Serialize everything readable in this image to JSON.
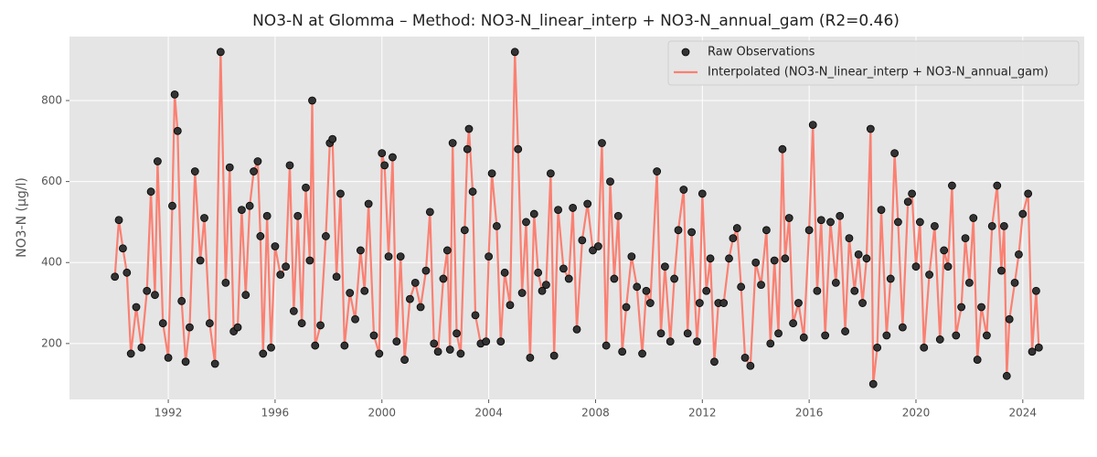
{
  "chart_data": {
    "type": "line_scatter",
    "title": "NO3-N at Glomma – Method: NO3-N_linear_interp + NO3-N_annual_gam (R2=0.46)",
    "y_label": "NO3-N (µg/l)",
    "xlim": [
      1988.3,
      2026.3
    ],
    "xticks": [
      1992,
      1996,
      2000,
      2004,
      2008,
      2012,
      2016,
      2020,
      2024
    ],
    "ylim": [
      62,
      958
    ],
    "yticks": [
      200,
      400,
      600,
      800
    ],
    "grid": true,
    "legend": "upper right",
    "x": [
      1990.0,
      1990.15,
      1990.3,
      1990.45,
      1990.6,
      1990.8,
      1991.0,
      1991.2,
      1991.35,
      1991.5,
      1991.6,
      1991.8,
      1992.0,
      1992.15,
      1992.24,
      1992.35,
      1992.5,
      1992.65,
      1992.8,
      1993.0,
      1993.2,
      1993.35,
      1993.55,
      1993.75,
      1993.96,
      1994.15,
      1994.3,
      1994.45,
      1994.6,
      1994.75,
      1994.9,
      1995.05,
      1995.2,
      1995.35,
      1995.45,
      1995.55,
      1995.7,
      1995.85,
      1996.0,
      1996.2,
      1996.4,
      1996.55,
      1996.7,
      1996.85,
      1997.0,
      1997.15,
      1997.3,
      1997.39,
      1997.5,
      1997.7,
      1997.9,
      1998.05,
      1998.15,
      1998.3,
      1998.45,
      1998.6,
      1998.8,
      1999.0,
      1999.2,
      1999.35,
      1999.5,
      1999.7,
      1999.9,
      2000.0,
      2000.1,
      2000.25,
      2000.4,
      2000.55,
      2000.7,
      2000.85,
      2001.05,
      2001.25,
      2001.45,
      2001.65,
      2001.8,
      2001.95,
      2002.1,
      2002.3,
      2002.45,
      2002.55,
      2002.65,
      2002.8,
      2002.95,
      2003.1,
      2003.2,
      2003.26,
      2003.4,
      2003.5,
      2003.7,
      2003.9,
      2004.0,
      2004.12,
      2004.3,
      2004.45,
      2004.6,
      2004.8,
      2004.98,
      2005.1,
      2005.25,
      2005.4,
      2005.55,
      2005.7,
      2005.85,
      2006.0,
      2006.15,
      2006.32,
      2006.45,
      2006.6,
      2006.8,
      2007.0,
      2007.15,
      2007.3,
      2007.5,
      2007.7,
      2007.9,
      2008.1,
      2008.24,
      2008.4,
      2008.55,
      2008.7,
      2008.85,
      2009.0,
      2009.15,
      2009.35,
      2009.55,
      2009.75,
      2009.9,
      2010.05,
      2010.3,
      2010.45,
      2010.6,
      2010.8,
      2010.95,
      2011.1,
      2011.3,
      2011.45,
      2011.6,
      2011.8,
      2011.9,
      2012.0,
      2012.15,
      2012.3,
      2012.45,
      2012.6,
      2012.8,
      2013.0,
      2013.15,
      2013.3,
      2013.45,
      2013.6,
      2013.8,
      2014.0,
      2014.2,
      2014.4,
      2014.55,
      2014.7,
      2014.85,
      2015.0,
      2015.1,
      2015.25,
      2015.4,
      2015.6,
      2015.8,
      2016.0,
      2016.14,
      2016.3,
      2016.45,
      2016.6,
      2016.8,
      2017.0,
      2017.15,
      2017.35,
      2017.5,
      2017.7,
      2017.85,
      2018.0,
      2018.15,
      2018.3,
      2018.4,
      2018.55,
      2018.7,
      2018.9,
      2019.05,
      2019.2,
      2019.33,
      2019.5,
      2019.7,
      2019.85,
      2020.0,
      2020.15,
      2020.3,
      2020.5,
      2020.7,
      2020.9,
      2021.05,
      2021.2,
      2021.35,
      2021.5,
      2021.7,
      2021.85,
      2022.0,
      2022.15,
      2022.3,
      2022.45,
      2022.65,
      2022.85,
      2023.04,
      2023.2,
      2023.3,
      2023.4,
      2023.5,
      2023.7,
      2023.85,
      2024.0,
      2024.2,
      2024.35,
      2024.5,
      2024.6
    ],
    "series": [
      {
        "name": "Raw Observations",
        "kind": "scatter",
        "color": "#333333",
        "values": [
          365,
          505,
          435,
          375,
          175,
          290,
          190,
          330,
          575,
          320,
          650,
          250,
          165,
          540,
          815,
          725,
          305,
          155,
          240,
          625,
          405,
          510,
          250,
          150,
          920,
          350,
          635,
          230,
          240,
          530,
          320,
          540,
          625,
          650,
          465,
          175,
          515,
          190,
          440,
          370,
          390,
          640,
          280,
          515,
          250,
          585,
          405,
          800,
          195,
          245,
          465,
          695,
          705,
          365,
          570,
          195,
          325,
          260,
          430,
          330,
          545,
          220,
          175,
          670,
          640,
          415,
          660,
          205,
          415,
          160,
          310,
          350,
          290,
          380,
          525,
          200,
          180,
          360,
          430,
          185,
          695,
          225,
          175,
          480,
          680,
          730,
          575,
          270,
          200,
          205,
          415,
          620,
          490,
          205,
          375,
          295,
          920,
          680,
          325,
          500,
          165,
          520,
          375,
          330,
          345,
          620,
          170,
          530,
          385,
          360,
          535,
          235,
          455,
          545,
          430,
          440,
          695,
          195,
          600,
          360,
          515,
          180,
          290,
          415,
          340,
          175,
          330,
          300,
          625,
          225,
          390,
          205,
          360,
          480,
          580,
          225,
          475,
          205,
          300,
          570,
          330,
          410,
          155,
          300,
          300,
          410,
          460,
          485,
          340,
          165,
          145,
          400,
          345,
          480,
          200,
          405,
          225,
          680,
          410,
          510,
          250,
          300,
          215,
          480,
          740,
          330,
          505,
          220,
          500,
          350,
          515,
          230,
          460,
          330,
          420,
          300,
          410,
          730,
          100,
          190,
          530,
          220,
          360,
          670,
          500,
          240,
          550,
          570,
          390,
          500,
          190,
          370,
          490,
          210,
          430,
          390,
          590,
          220,
          290,
          460,
          350,
          510,
          160,
          290,
          220,
          490,
          590,
          380,
          490,
          120,
          260,
          350,
          420,
          520,
          570,
          180,
          330,
          190
        ]
      },
      {
        "name": "Interpolated (NO3-N_linear_interp + NO3-N_annual_gam)",
        "kind": "line",
        "color": "#fa8072",
        "values": [
          365,
          505,
          435,
          375,
          175,
          290,
          190,
          330,
          575,
          320,
          650,
          250,
          165,
          540,
          815,
          725,
          305,
          155,
          240,
          625,
          405,
          510,
          250,
          150,
          920,
          350,
          635,
          230,
          240,
          530,
          320,
          540,
          625,
          650,
          465,
          175,
          515,
          190,
          440,
          370,
          390,
          640,
          280,
          515,
          250,
          585,
          405,
          800,
          195,
          245,
          465,
          695,
          705,
          365,
          570,
          195,
          325,
          260,
          430,
          330,
          545,
          220,
          175,
          670,
          640,
          415,
          660,
          205,
          415,
          160,
          310,
          350,
          290,
          380,
          525,
          200,
          180,
          360,
          430,
          185,
          695,
          225,
          175,
          480,
          680,
          730,
          575,
          270,
          200,
          205,
          415,
          620,
          490,
          205,
          375,
          295,
          920,
          680,
          325,
          500,
          165,
          520,
          375,
          330,
          345,
          620,
          170,
          530,
          385,
          360,
          535,
          235,
          455,
          545,
          430,
          440,
          695,
          195,
          600,
          360,
          515,
          180,
          290,
          415,
          340,
          175,
          330,
          300,
          625,
          225,
          390,
          205,
          360,
          480,
          580,
          225,
          475,
          205,
          300,
          570,
          330,
          410,
          155,
          300,
          300,
          410,
          460,
          485,
          340,
          165,
          145,
          400,
          345,
          480,
          200,
          405,
          225,
          680,
          410,
          510,
          250,
          300,
          215,
          480,
          740,
          330,
          505,
          220,
          500,
          350,
          515,
          230,
          460,
          330,
          420,
          300,
          410,
          730,
          100,
          190,
          530,
          220,
          360,
          670,
          500,
          240,
          550,
          570,
          390,
          500,
          190,
          370,
          490,
          210,
          430,
          390,
          590,
          220,
          290,
          460,
          350,
          510,
          160,
          290,
          220,
          490,
          590,
          380,
          490,
          120,
          260,
          350,
          420,
          520,
          570,
          180,
          330,
          190
        ]
      }
    ]
  }
}
